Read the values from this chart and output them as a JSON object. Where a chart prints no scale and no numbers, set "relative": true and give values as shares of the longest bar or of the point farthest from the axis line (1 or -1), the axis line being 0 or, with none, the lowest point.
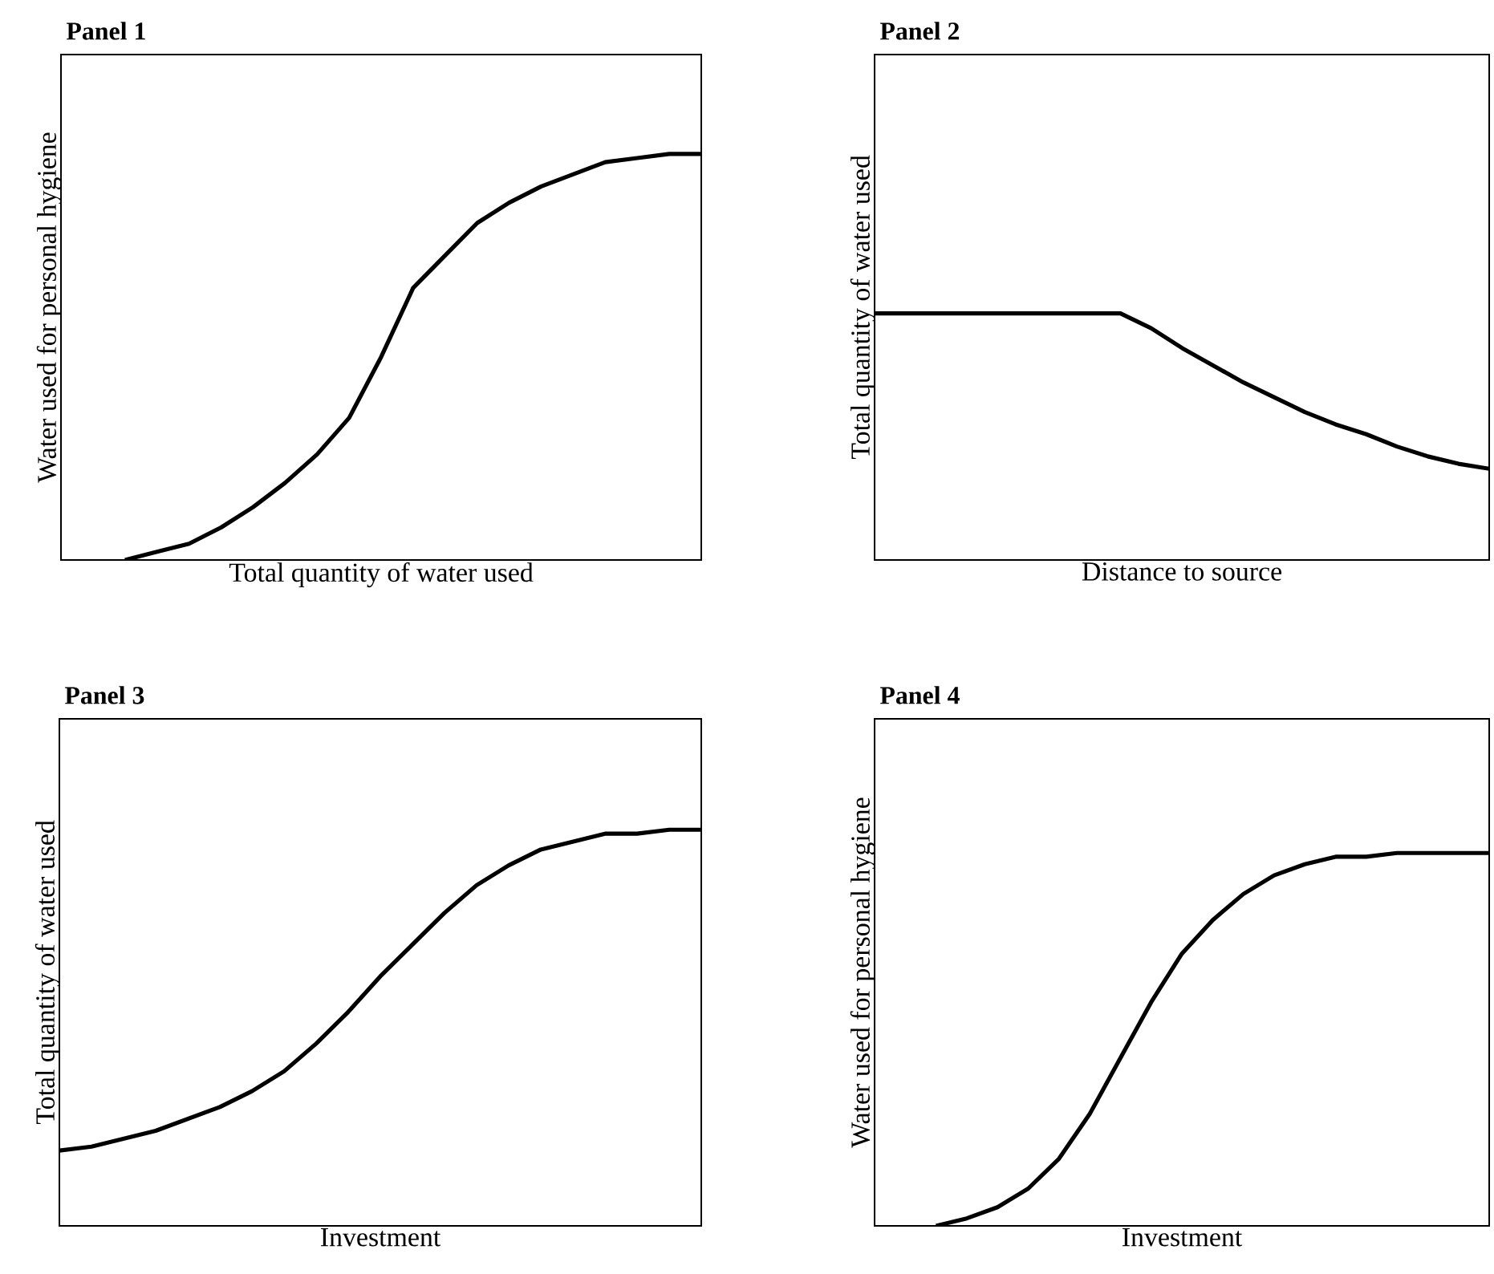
{
  "chart_data": [
    {
      "type": "line",
      "title": "Panel 1",
      "xlabel": "Total quantity of water used",
      "ylabel": "Water used for personal hygiene",
      "relative": true,
      "color": "#000000",
      "categories": [
        null,
        null,
        null,
        null,
        null,
        null,
        null,
        null,
        null,
        null,
        null,
        null,
        null,
        null,
        null,
        null,
        null,
        null,
        null,
        null,
        null
      ],
      "values": [
        null,
        null,
        0,
        0.02,
        0.04,
        0.08,
        0.13,
        0.19,
        0.26,
        0.35,
        0.5,
        0.67,
        0.75,
        0.83,
        0.88,
        0.92,
        0.95,
        0.98,
        0.99,
        1,
        1
      ]
    },
    {
      "type": "line",
      "title": "Panel 2",
      "xlabel": "Distance to source",
      "ylabel": "Total quantity of water used",
      "relative": true,
      "color": "#000000",
      "categories": [
        null,
        null,
        null,
        null,
        null,
        null,
        null,
        null,
        null,
        null,
        null,
        null,
        null,
        null,
        null,
        null,
        null,
        null,
        null,
        null,
        null
      ],
      "values": [
        1,
        1,
        1,
        1,
        1,
        1,
        1,
        1,
        1,
        0.94,
        0.86,
        0.79,
        0.72,
        0.66,
        0.6,
        0.55,
        0.51,
        0.46,
        0.42,
        0.39,
        0.37
      ]
    },
    {
      "type": "line",
      "title": "Panel 3",
      "xlabel": "Investment",
      "ylabel": "Total quantity of water used",
      "relative": true,
      "color": "#000000",
      "categories": [
        null,
        null,
        null,
        null,
        null,
        null,
        null,
        null,
        null,
        null,
        null,
        null,
        null,
        null,
        null,
        null,
        null,
        null,
        null,
        null,
        null
      ],
      "values": [
        0.19,
        0.2,
        0.22,
        0.24,
        0.27,
        0.3,
        0.34,
        0.39,
        0.46,
        0.54,
        0.63,
        0.71,
        0.79,
        0.86,
        0.91,
        0.95,
        0.97,
        0.99,
        0.99,
        1,
        1
      ]
    },
    {
      "type": "line",
      "title": "Panel 4",
      "xlabel": "Investment",
      "ylabel": "Water used for personal hygiene",
      "relative": true,
      "color": "#000000",
      "categories": [
        null,
        null,
        null,
        null,
        null,
        null,
        null,
        null,
        null,
        null,
        null,
        null,
        null,
        null,
        null,
        null,
        null,
        null,
        null,
        null,
        null
      ],
      "values": [
        null,
        null,
        0,
        0.02,
        0.05,
        0.1,
        0.18,
        0.3,
        0.45,
        0.6,
        0.73,
        0.82,
        0.89,
        0.94,
        0.97,
        0.99,
        0.99,
        1,
        1,
        1,
        1
      ]
    }
  ]
}
